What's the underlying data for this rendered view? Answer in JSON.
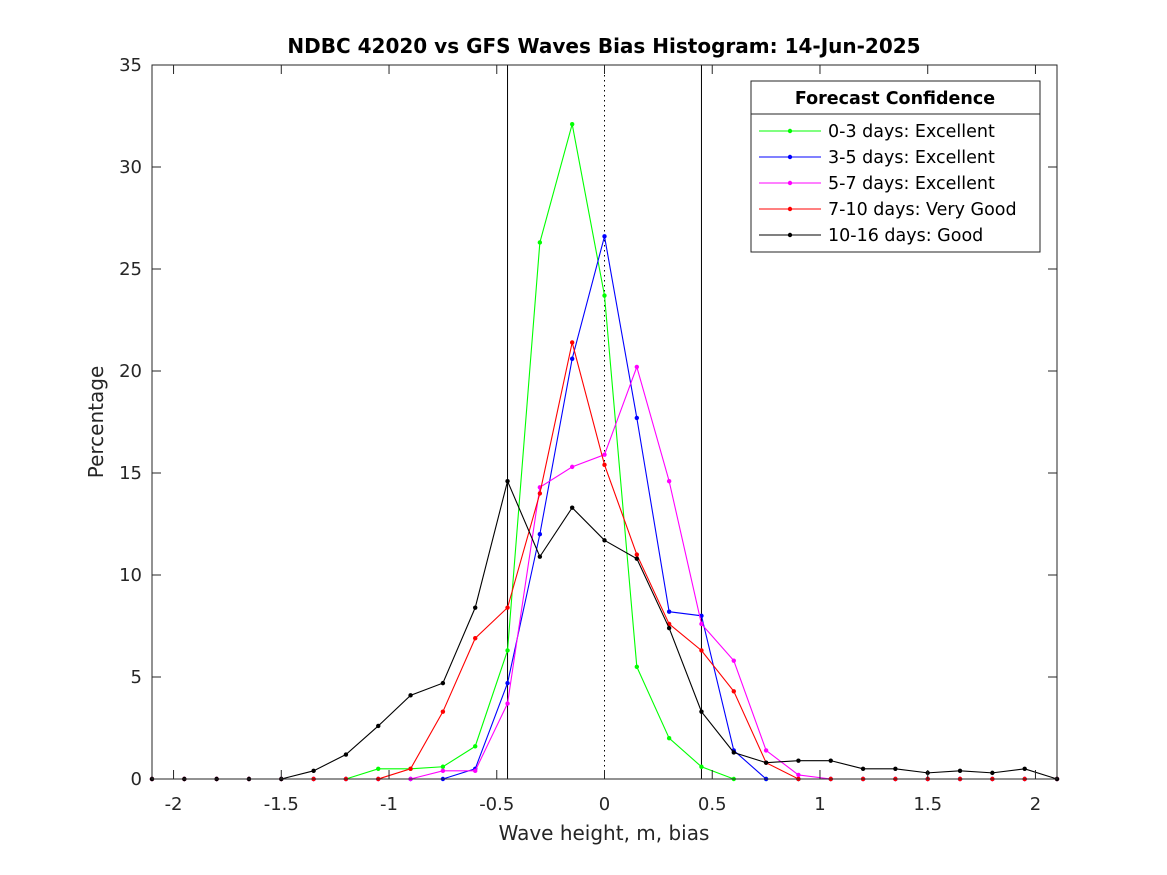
{
  "chart_data": {
    "type": "line",
    "title": "NDBC 42020 vs GFS Waves Bias Histogram: 14-Jun-2025",
    "xlabel": "Wave height, m, bias",
    "ylabel": "Percentage",
    "xlim": [
      -2.1,
      2.1
    ],
    "ylim": [
      0,
      35
    ],
    "xticks": [
      -2,
      -1.5,
      -1,
      -0.5,
      0,
      0.5,
      1,
      1.5,
      2
    ],
    "xtick_labels": [
      "-2",
      "-1.5",
      "-1",
      "-0.5",
      "0",
      "0.5",
      "1",
      "1.5",
      "2"
    ],
    "yticks": [
      0,
      5,
      10,
      15,
      20,
      25,
      30,
      35
    ],
    "ytick_labels": [
      "0",
      "5",
      "10",
      "15",
      "20",
      "25",
      "30",
      "35"
    ],
    "x": [
      -2.1,
      -1.95,
      -1.8,
      -1.65,
      -1.5,
      -1.35,
      -1.2,
      -1.05,
      -0.9,
      -0.75,
      -0.6,
      -0.45,
      -0.3,
      -0.15,
      0,
      0.15,
      0.3,
      0.45,
      0.6,
      0.75,
      0.9,
      1.05,
      1.2,
      1.35,
      1.5,
      1.65,
      1.8,
      1.95,
      2.1
    ],
    "series": [
      {
        "name": "0-3 days: Excellent",
        "color": "#00ff00",
        "values": [
          0,
          0,
          0,
          0,
          0,
          0,
          0,
          0.5,
          0.5,
          0.6,
          1.6,
          6.3,
          26.3,
          32.1,
          23.7,
          5.5,
          2.0,
          0.6,
          0,
          0,
          0,
          0,
          0,
          0,
          0,
          0,
          0,
          0,
          0
        ]
      },
      {
        "name": "3-5 days: Excellent",
        "color": "#0000ff",
        "values": [
          0,
          0,
          0,
          0,
          0,
          0,
          0,
          0,
          0,
          0,
          0.5,
          4.7,
          12.0,
          20.6,
          26.6,
          17.7,
          8.2,
          8.0,
          1.4,
          0,
          0,
          0,
          0,
          0,
          0,
          0,
          0,
          0,
          0
        ]
      },
      {
        "name": "5-7 days: Excellent",
        "color": "#ff00ff",
        "values": [
          0,
          0,
          0,
          0,
          0,
          0,
          0,
          0,
          0,
          0.4,
          0.4,
          3.7,
          14.3,
          15.3,
          15.9,
          20.2,
          14.6,
          7.6,
          5.8,
          1.4,
          0.2,
          0,
          0,
          0,
          0,
          0,
          0,
          0,
          0
        ]
      },
      {
        "name": "7-10 days: Very Good",
        "color": "#ff0000",
        "values": [
          0,
          0,
          0,
          0,
          0,
          0,
          0,
          0,
          0.5,
          3.3,
          6.9,
          8.4,
          14.0,
          21.4,
          15.4,
          11.0,
          7.6,
          6.3,
          4.3,
          0.8,
          0,
          0,
          0,
          0,
          0,
          0,
          0,
          0,
          0
        ]
      },
      {
        "name": "10-16 days: Good",
        "color": "#000000",
        "values": [
          0,
          0,
          0,
          0,
          0,
          0.4,
          1.2,
          2.6,
          4.1,
          4.7,
          8.4,
          14.6,
          10.9,
          13.3,
          11.7,
          10.8,
          7.4,
          3.3,
          1.3,
          0.8,
          0.9,
          0.9,
          0.5,
          0.5,
          0.3,
          0.4,
          0.3,
          0.5,
          0
        ]
      }
    ],
    "reference_lines": [
      {
        "x": -0.45,
        "style": "solid"
      },
      {
        "x": 0,
        "style": "dotted"
      },
      {
        "x": 0.45,
        "style": "solid"
      }
    ],
    "legend": {
      "title": "Forecast Confidence",
      "position": "top-right"
    },
    "grid": false
  }
}
